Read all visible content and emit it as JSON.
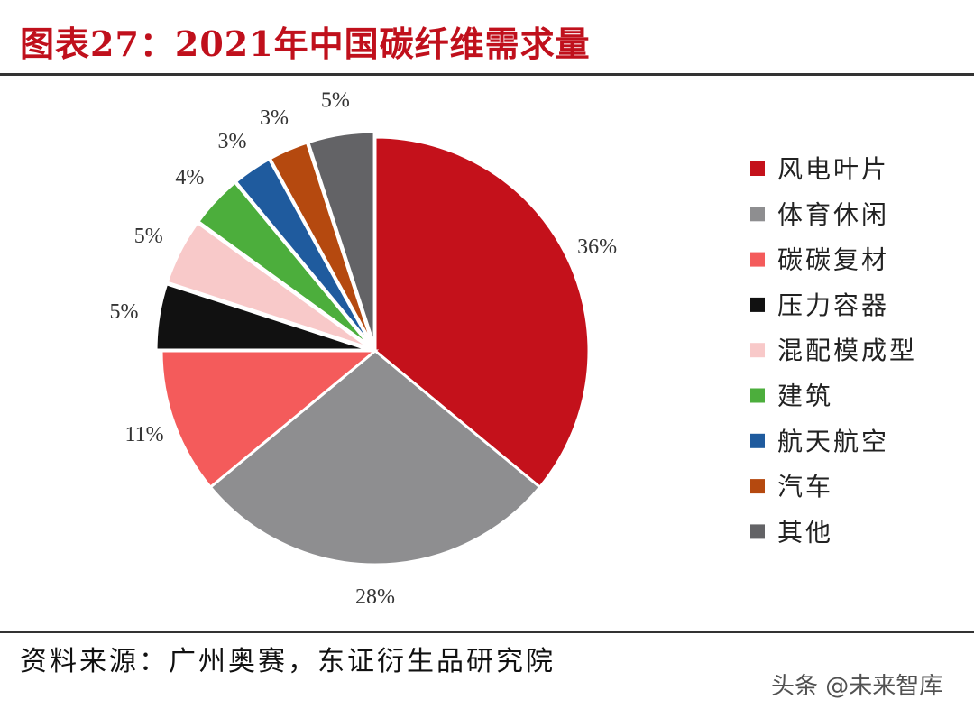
{
  "title": "图表27：2021年中国碳纤维需求量",
  "source": "资料来源：广州奥赛，东证衍生品研究院",
  "watermark": "头条 @未来智库",
  "chart_data": {
    "type": "pie",
    "title": "图表27：2021年中国碳纤维需求量",
    "start": "top",
    "direction": "clockwise",
    "legend_position": "right",
    "categories": [
      "风电叶片",
      "体育休闲",
      "碳碳复材",
      "压力容器",
      "混配模成型",
      "建筑",
      "航天航空",
      "汽车",
      "其他"
    ],
    "values": [
      36,
      28,
      11,
      5,
      5,
      4,
      3,
      3,
      5
    ],
    "labels": [
      "36%",
      "28%",
      "11%",
      "5%",
      "5%",
      "4%",
      "3%",
      "3%",
      "5%"
    ],
    "colors": [
      "#c4111b",
      "#8e8e90",
      "#f45b5b",
      "#111111",
      "#f8c9c9",
      "#4cae3c",
      "#1f5b9e",
      "#b5490f",
      "#636366"
    ]
  }
}
